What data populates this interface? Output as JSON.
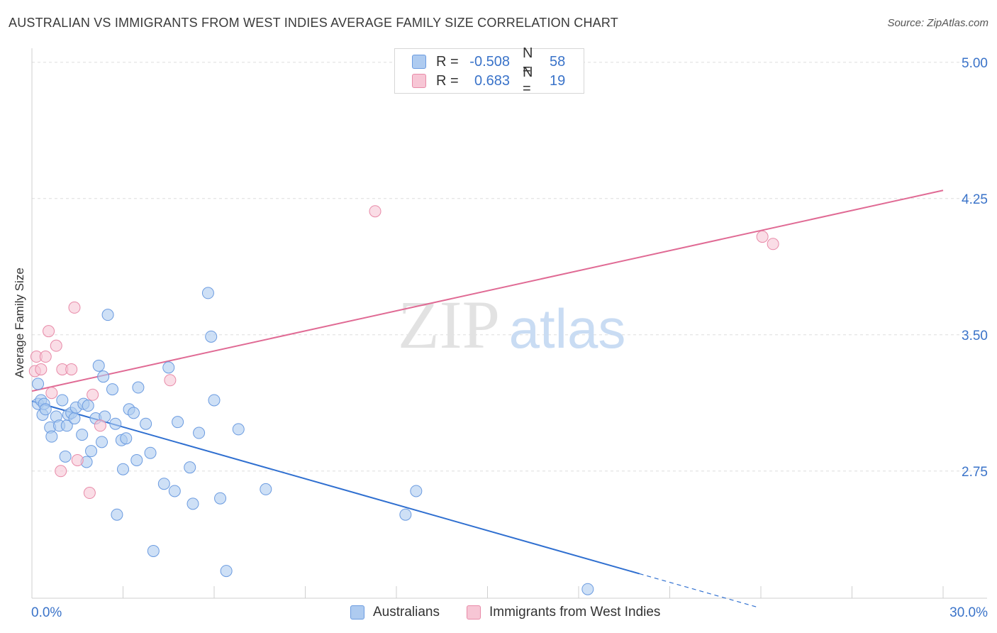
{
  "title": "AUSTRALIAN VS IMMIGRANTS FROM WEST INDIES AVERAGE FAMILY SIZE CORRELATION CHART",
  "source": "Source: ZipAtlas.com",
  "watermark": {
    "zip": "ZIP",
    "atlas": "atlas"
  },
  "legend": {
    "r_label": "R =",
    "n_label": "N =",
    "rows": [
      {
        "r": "-0.508",
        "n": "58",
        "color": "#aecbf0",
        "border": "#6b9be0"
      },
      {
        "r": "0.683",
        "n": "19",
        "color": "#f7c6d5",
        "border": "#e88aa8"
      }
    ]
  },
  "bottom_legend": [
    "Australians",
    "Immigrants from West Indies"
  ],
  "colors": {
    "blue_fill": "#aecbf0",
    "blue_stroke": "#6b9be0",
    "blue_line": "#2f6fd0",
    "pink_fill": "#f7c6d5",
    "pink_stroke": "#e88aa8",
    "pink_line": "#e06a94",
    "axis_text": "#3a73c9",
    "grid": "#dddddd"
  },
  "chart_data": {
    "type": "scatter",
    "xlabel": "",
    "ylabel": "Average Family Size",
    "xlim": [
      0,
      30
    ],
    "ylim": [
      2.05,
      5.05
    ],
    "x_tick_labels": [
      "0.0%",
      "30.0%"
    ],
    "y_ticks": [
      2.75,
      3.5,
      4.25,
      5.0
    ],
    "y_tick_labels": [
      "2.75",
      "3.50",
      "4.25",
      "5.00"
    ],
    "grid": true,
    "series": [
      {
        "name": "Australians",
        "points": [
          [
            0.2,
            3.23
          ],
          [
            0.2,
            3.12
          ],
          [
            0.3,
            3.14
          ],
          [
            0.35,
            3.06
          ],
          [
            0.4,
            3.12
          ],
          [
            0.45,
            3.09
          ],
          [
            0.6,
            2.99
          ],
          [
            0.65,
            2.94
          ],
          [
            0.8,
            3.05
          ],
          [
            0.9,
            3.0
          ],
          [
            1.0,
            3.14
          ],
          [
            1.1,
            2.83
          ],
          [
            1.15,
            3.0
          ],
          [
            1.2,
            3.06
          ],
          [
            1.3,
            3.07
          ],
          [
            1.4,
            3.04
          ],
          [
            1.45,
            3.1
          ],
          [
            1.65,
            2.95
          ],
          [
            1.7,
            3.12
          ],
          [
            1.8,
            2.8
          ],
          [
            1.85,
            3.11
          ],
          [
            1.95,
            2.86
          ],
          [
            2.1,
            3.04
          ],
          [
            2.2,
            3.33
          ],
          [
            2.3,
            2.91
          ],
          [
            2.35,
            3.27
          ],
          [
            2.4,
            3.05
          ],
          [
            2.5,
            3.61
          ],
          [
            2.65,
            3.2
          ],
          [
            2.75,
            3.01
          ],
          [
            2.8,
            2.51
          ],
          [
            2.95,
            2.92
          ],
          [
            3.0,
            2.76
          ],
          [
            3.1,
            2.93
          ],
          [
            3.2,
            3.09
          ],
          [
            3.35,
            3.07
          ],
          [
            3.45,
            2.81
          ],
          [
            3.5,
            3.21
          ],
          [
            3.75,
            3.01
          ],
          [
            3.9,
            2.85
          ],
          [
            4.0,
            2.31
          ],
          [
            4.35,
            2.68
          ],
          [
            4.5,
            3.32
          ],
          [
            4.7,
            2.64
          ],
          [
            4.8,
            3.02
          ],
          [
            5.2,
            2.77
          ],
          [
            5.3,
            2.57
          ],
          [
            5.5,
            2.96
          ],
          [
            5.8,
            3.73
          ],
          [
            5.9,
            3.49
          ],
          [
            6.0,
            3.14
          ],
          [
            6.2,
            2.6
          ],
          [
            6.4,
            2.2
          ],
          [
            6.8,
            2.98
          ],
          [
            7.7,
            2.65
          ],
          [
            12.3,
            2.51
          ],
          [
            12.65,
            2.64
          ],
          [
            18.3,
            2.1
          ]
        ],
        "trend": {
          "x": [
            0,
            20.0
          ],
          "y": [
            3.135,
            2.185
          ],
          "dashed_to": [
            23.9,
            2.0
          ]
        }
      },
      {
        "name": "Immigrants from West Indies",
        "points": [
          [
            0.1,
            3.3
          ],
          [
            0.15,
            3.38
          ],
          [
            0.3,
            3.31
          ],
          [
            0.45,
            3.38
          ],
          [
            0.55,
            3.52
          ],
          [
            0.65,
            3.18
          ],
          [
            0.8,
            3.44
          ],
          [
            0.95,
            2.75
          ],
          [
            1.0,
            3.31
          ],
          [
            1.3,
            3.31
          ],
          [
            1.4,
            3.65
          ],
          [
            1.5,
            2.81
          ],
          [
            1.9,
            2.63
          ],
          [
            2.0,
            3.17
          ],
          [
            2.25,
            3.0
          ],
          [
            4.55,
            3.25
          ],
          [
            11.3,
            4.18
          ],
          [
            24.05,
            4.04
          ],
          [
            24.4,
            4.0
          ]
        ],
        "trend": {
          "x": [
            0,
            30.0
          ],
          "y": [
            3.19,
            4.295
          ]
        }
      }
    ]
  }
}
